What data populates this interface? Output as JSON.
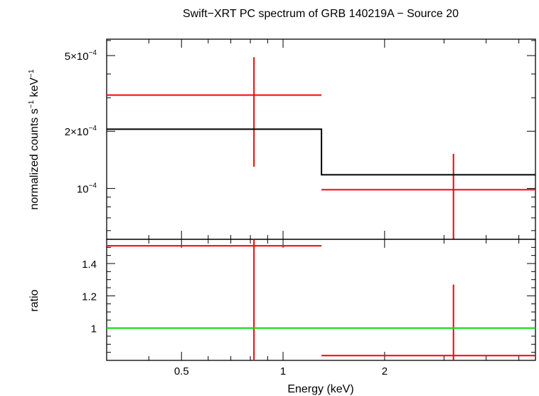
{
  "chart_data": {
    "title": "Swift−XRT PC spectrum of GRB 140219A − Source 20",
    "xlabel": "Energy (keV)",
    "x_scale": "log",
    "xlim": [
      0.3,
      5.6
    ],
    "x_ticks": [
      {
        "value": 0.5,
        "label": "0.5"
      },
      {
        "value": 1,
        "label": "1"
      },
      {
        "value": 2,
        "label": "2"
      }
    ],
    "panels": [
      {
        "type": "scatter",
        "ylabel_parts": [
          "normalized counts s",
          "−1",
          " keV",
          "−1"
        ],
        "y_scale": "log",
        "ylim": [
          5.4e-05,
          0.00061
        ],
        "y_ticks": [
          {
            "value": 0.0005,
            "mantissa": "5×10",
            "exp": "−4"
          },
          {
            "value": 0.0002,
            "mantissa": "2×10",
            "exp": "−4"
          },
          {
            "value": 0.0001,
            "mantissa": "10",
            "exp": "−4"
          }
        ],
        "series": [
          {
            "kind": "data",
            "color": "#ff0000",
            "points": [
              {
                "x": 0.82,
                "xlo": 0.3,
                "xhi": 1.3,
                "y": 0.00031,
                "ylo": 0.00013,
                "yhi": 0.00049
              },
              {
                "x": 3.2,
                "xlo": 1.3,
                "xhi": 5.6,
                "y": 9.85e-05,
                "ylo": 5.4e-05,
                "yhi": 0.000152
              }
            ]
          },
          {
            "kind": "model",
            "color": "#000000",
            "steps": [
              {
                "xlo": 0.3,
                "xhi": 1.3,
                "y": 0.000205
              },
              {
                "xlo": 1.3,
                "xhi": 5.6,
                "y": 0.000118
              }
            ]
          }
        ]
      },
      {
        "type": "scatter",
        "ylabel": "ratio",
        "y_scale": "linear",
        "ylim": [
          0.8,
          1.55
        ],
        "y_ticks": [
          {
            "value": 1.4,
            "label": "1.4"
          },
          {
            "value": 1.2,
            "label": "1.2"
          },
          {
            "value": 1,
            "label": "1"
          }
        ],
        "series": [
          {
            "kind": "data",
            "color": "#ff0000",
            "points": [
              {
                "x": 0.82,
                "xlo": 0.3,
                "xhi": 1.3,
                "y": 1.51,
                "ylo": 0.8,
                "yhi": 1.55
              },
              {
                "x": 3.2,
                "xlo": 1.3,
                "xhi": 5.6,
                "y": 0.83,
                "ylo": 0.8,
                "yhi": 1.27
              }
            ]
          },
          {
            "kind": "reference",
            "color": "#00dd00",
            "y": 1
          }
        ]
      }
    ]
  }
}
